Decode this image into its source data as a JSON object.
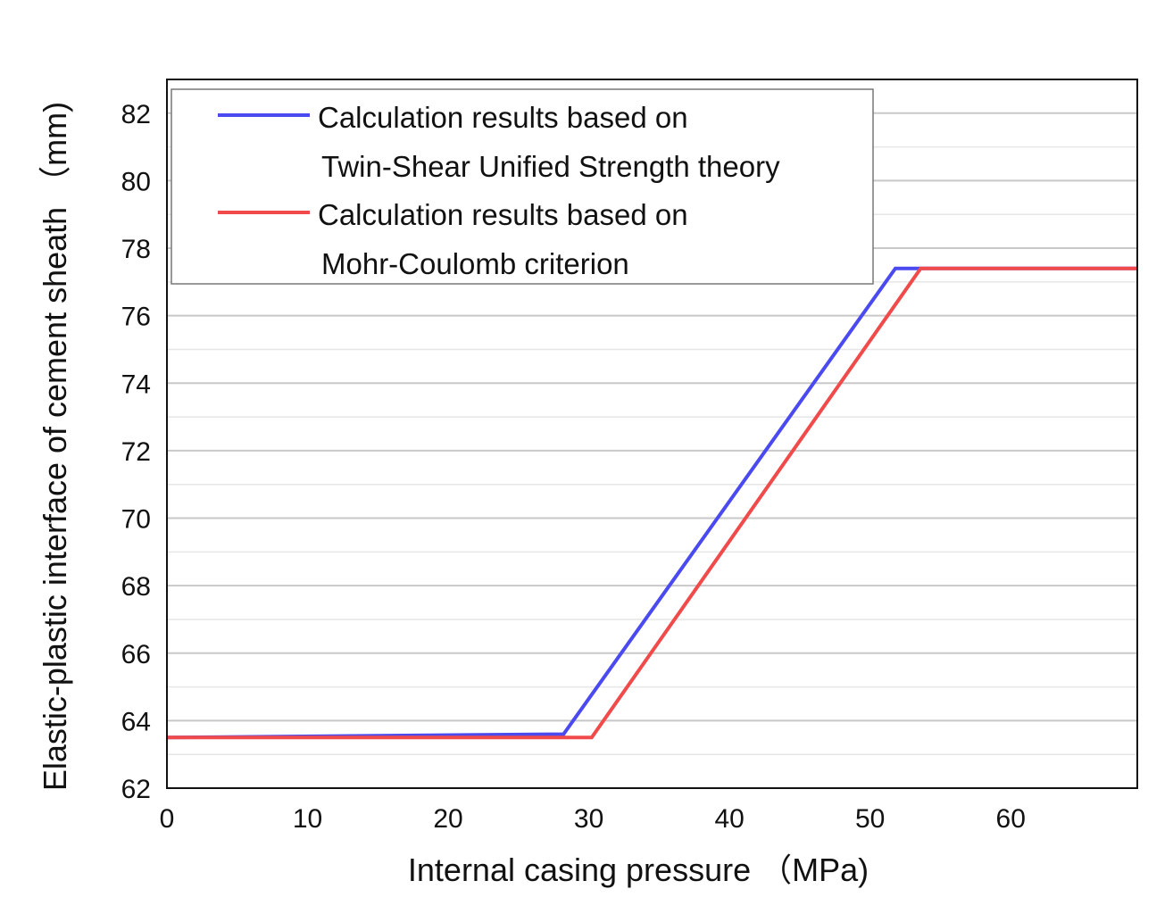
{
  "chart_data": {
    "type": "line",
    "xlabel": "Internal casing pressure （MPa)",
    "ylabel": "Elastic-plastic interface of cement sheath （mm)",
    "xlim": [
      0,
      69
    ],
    "ylim": [
      62,
      83
    ],
    "x_ticks": [
      0,
      10,
      20,
      30,
      40,
      50,
      60
    ],
    "y_ticks": [
      62,
      64,
      66,
      68,
      70,
      72,
      74,
      76,
      78,
      80,
      82
    ],
    "grid": true,
    "legend_position": "top-left",
    "series": [
      {
        "name": "Calculation results based on Twin-Shear Unified Strength theory",
        "legend_line1": "Calculation results based on",
        "legend_line2": "Twin-Shear Unified Strength theory",
        "color": "#4a4af0",
        "x": [
          0,
          28.2,
          51.8,
          69
        ],
        "y": [
          63.5,
          63.6,
          77.4,
          77.4
        ]
      },
      {
        "name": "Calculation results based on Mohr-Coulomb criterion",
        "legend_line1": "Calculation results based on",
        "legend_line2": "Mohr-Coulomb criterion",
        "color": "#f04a4a",
        "x": [
          0,
          30.2,
          53.6,
          69
        ],
        "y": [
          63.5,
          63.5,
          77.4,
          77.4
        ]
      }
    ]
  }
}
